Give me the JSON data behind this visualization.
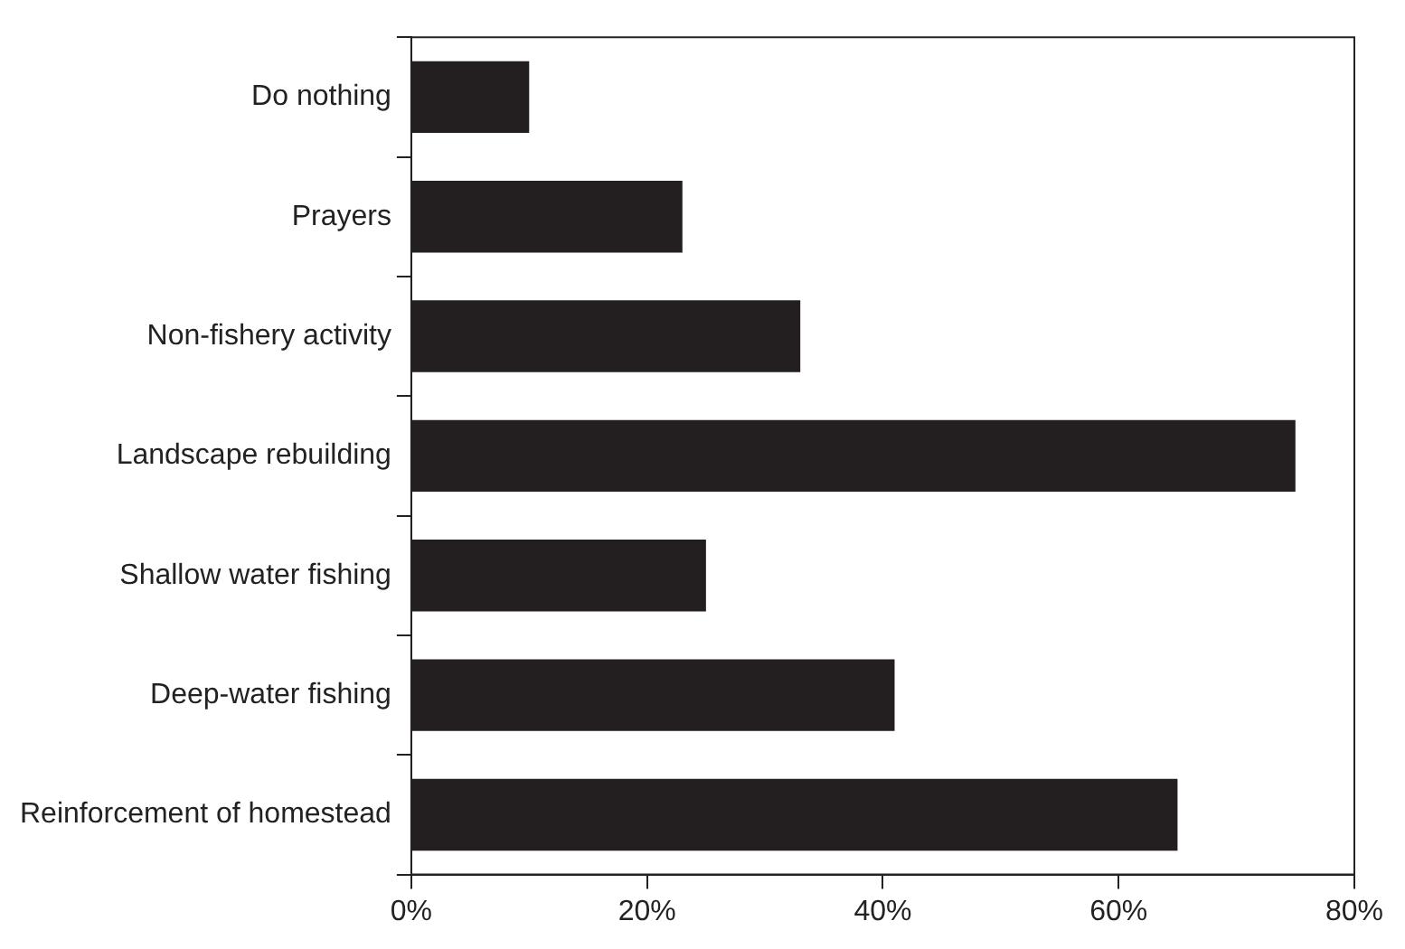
{
  "chart_data": {
    "type": "bar",
    "orientation": "horizontal",
    "categories": [
      "Do nothing",
      "Prayers",
      "Non-fishery activity",
      "Landscape rebuilding",
      "Shallow water fishing",
      "Deep-water fishing",
      "Reinforcement of homestead"
    ],
    "values": [
      10,
      23,
      33,
      75,
      25,
      41,
      65
    ],
    "color": "#231f20",
    "xlim": [
      0,
      80
    ],
    "xticks": [
      {
        "value": 0,
        "label": "0%"
      },
      {
        "value": 20,
        "label": "20%"
      },
      {
        "value": 40,
        "label": "40%"
      },
      {
        "value": 60,
        "label": "60%"
      },
      {
        "value": 80,
        "label": "80%"
      }
    ],
    "grid": false,
    "legend": false
  }
}
